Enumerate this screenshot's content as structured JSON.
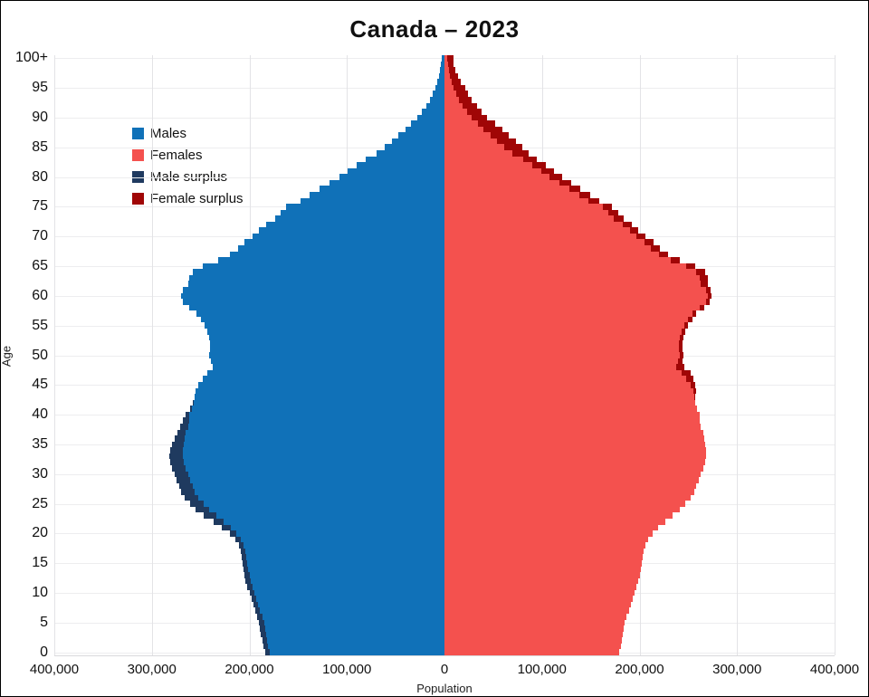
{
  "title": "Canada – 2023",
  "axes": {
    "x_label": "Population",
    "y_label": "Age",
    "x_tick_labels": [
      "400,000",
      "300,000",
      "200,000",
      "100,000",
      "0",
      "100,000",
      "200,000",
      "300,000",
      "400,000"
    ],
    "x_tick_values": [
      -400000,
      -300000,
      -200000,
      -100000,
      0,
      100000,
      200000,
      300000,
      400000
    ],
    "y_tick_labels": [
      "0",
      "5",
      "10",
      "15",
      "20",
      "25",
      "30",
      "35",
      "40",
      "45",
      "50",
      "55",
      "60",
      "65",
      "70",
      "75",
      "80",
      "85",
      "90",
      "95",
      "100+"
    ],
    "y_tick_ages": [
      0,
      5,
      10,
      15,
      20,
      25,
      30,
      35,
      40,
      45,
      50,
      55,
      60,
      65,
      70,
      75,
      80,
      85,
      90,
      95,
      100
    ]
  },
  "legend": [
    {
      "label": "Males",
      "color_key": "males"
    },
    {
      "label": "Females",
      "color_key": "females"
    },
    {
      "label": "Male surplus",
      "color_key": "male_surplus"
    },
    {
      "label": "Female surplus",
      "color_key": "female_surplus"
    }
  ],
  "colors": {
    "males": "#1071b8",
    "females": "#f4514e",
    "male_surplus": "#1f3a5f",
    "female_surplus": "#a00606",
    "gridline_v": "#e3e3e6",
    "gridline_h": "#ededef",
    "title_text": "#111111"
  },
  "chart_data": {
    "type": "bar",
    "subtype": "population_pyramid",
    "title": "Canada – 2023",
    "xlabel": "Population",
    "ylabel": "Age",
    "xlim": [
      -400000,
      400000
    ],
    "grid": true,
    "legend_position": "top-left-inside",
    "ages": [
      0,
      1,
      2,
      3,
      4,
      5,
      6,
      7,
      8,
      9,
      10,
      11,
      12,
      13,
      14,
      15,
      16,
      17,
      18,
      19,
      20,
      21,
      22,
      23,
      24,
      25,
      26,
      27,
      28,
      29,
      30,
      31,
      32,
      33,
      34,
      35,
      36,
      37,
      38,
      39,
      40,
      41,
      42,
      43,
      44,
      45,
      46,
      47,
      48,
      49,
      50,
      51,
      52,
      53,
      54,
      55,
      56,
      57,
      58,
      59,
      60,
      61,
      62,
      63,
      64,
      65,
      66,
      67,
      68,
      69,
      70,
      71,
      72,
      73,
      74,
      75,
      76,
      77,
      78,
      79,
      80,
      81,
      82,
      83,
      84,
      85,
      86,
      87,
      88,
      89,
      90,
      91,
      92,
      93,
      94,
      95,
      96,
      97,
      98,
      99,
      100
    ],
    "series": [
      {
        "name": "Males",
        "values": [
          184000,
          186000,
          187000,
          188000,
          189000,
          190000,
          192000,
          194000,
          196000,
          198000,
          200000,
          202000,
          204000,
          205000,
          206000,
          207000,
          208000,
          209000,
          211000,
          214000,
          220000,
          228000,
          237000,
          247000,
          255000,
          261000,
          266000,
          270000,
          272000,
          275000,
          277000,
          279000,
          281000,
          282000,
          281000,
          279000,
          277000,
          274000,
          271000,
          268000,
          265000,
          261000,
          258000,
          256000,
          255000,
          252000,
          248000,
          243000,
          238000,
          239000,
          241000,
          240000,
          240000,
          241000,
          243000,
          246000,
          250000,
          254000,
          262000,
          268000,
          270000,
          268000,
          263000,
          262000,
          258000,
          248000,
          232000,
          220000,
          212000,
          205000,
          197000,
          190000,
          183000,
          174000,
          168000,
          162000,
          148000,
          138000,
          128000,
          118000,
          108000,
          99000,
          90000,
          81000,
          70000,
          61000,
          54000,
          47000,
          40000,
          34000,
          28000,
          23000,
          19000,
          15000,
          12000,
          9500,
          7500,
          6000,
          4500,
          3500,
          3000
        ]
      },
      {
        "name": "Females",
        "values": [
          179000,
          181000,
          182000,
          183000,
          184000,
          185000,
          187000,
          189000,
          191000,
          193000,
          195000,
          197000,
          199000,
          200000,
          201000,
          202000,
          203000,
          204000,
          206000,
          209000,
          213000,
          219000,
          226000,
          234000,
          241000,
          247000,
          252000,
          256000,
          258000,
          261000,
          263000,
          265000,
          267000,
          268000,
          268000,
          267000,
          266000,
          265000,
          263000,
          262000,
          262000,
          259000,
          257000,
          257000,
          258000,
          257000,
          255000,
          252000,
          246000,
          244000,
          245000,
          244000,
          244000,
          245000,
          247000,
          250000,
          254000,
          258000,
          266000,
          272000,
          274000,
          273000,
          270000,
          270000,
          267000,
          257000,
          241000,
          229000,
          221000,
          214000,
          206000,
          199000,
          192000,
          184000,
          178000,
          172000,
          159000,
          149000,
          139000,
          130000,
          121000,
          112000,
          104000,
          95000,
          86000,
          80000,
          73000,
          66000,
          59000,
          52000,
          44000,
          38000,
          33000,
          28000,
          24000,
          21000,
          17000,
          14000,
          11000,
          9000,
          9000
        ]
      }
    ],
    "surplus_rendering": "male_surplus = males - females where positive (navy, outer end of left bar); female_surplus = females - males where positive (dark red, outer end of right bar)"
  }
}
